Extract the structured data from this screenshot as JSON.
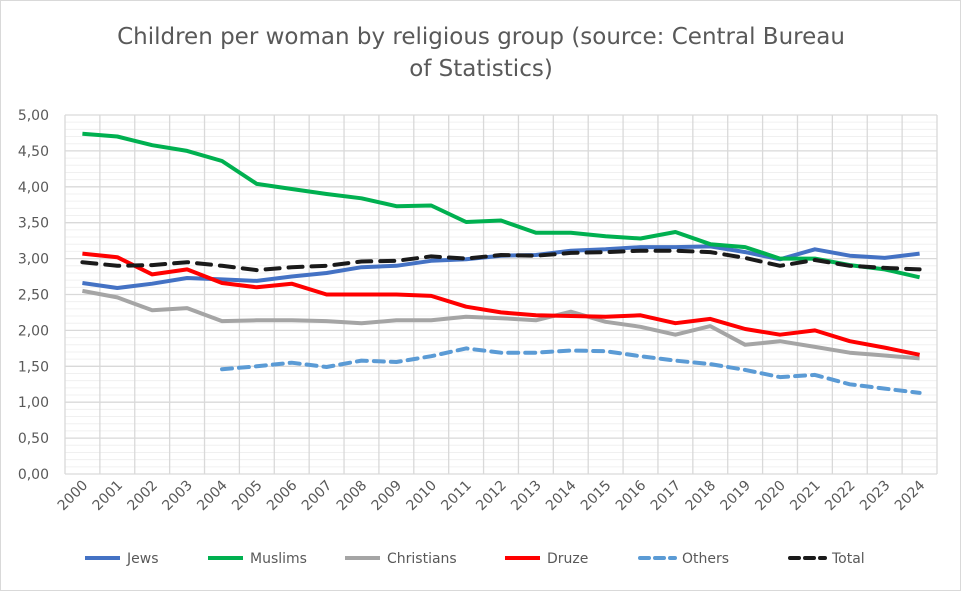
{
  "chart_data": {
    "type": "line",
    "title": "Children per woman by religious group (source: Central Bureau of Statistics)",
    "title_lines": [
      "Children per woman by religious group (source: Central Bureau",
      "of Statistics)"
    ],
    "xlabel": "",
    "ylabel": "",
    "ylim": [
      0,
      5
    ],
    "yticks": [
      "0,00",
      "0,50",
      "1,00",
      "1,50",
      "2,00",
      "2,50",
      "3,00",
      "3,50",
      "4,00",
      "4,50",
      "5,00"
    ],
    "grid": true,
    "legend_position": "bottom",
    "categories": [
      "2000",
      "2001",
      "2002",
      "2003",
      "2004",
      "2005",
      "2006",
      "2007",
      "2008",
      "2009",
      "2010",
      "2011",
      "2012",
      "2013",
      "2014",
      "2015",
      "2016",
      "2017",
      "2018",
      "2019",
      "2020",
      "2021",
      "2022",
      "2023",
      "2024"
    ],
    "series": [
      {
        "name": "Jews",
        "color": "#4472c4",
        "dash": false,
        "values": [
          2.66,
          2.59,
          2.65,
          2.73,
          2.71,
          2.69,
          2.75,
          2.8,
          2.88,
          2.9,
          2.97,
          2.99,
          3.04,
          3.05,
          3.11,
          3.13,
          3.16,
          3.16,
          3.17,
          3.09,
          2.99,
          3.13,
          3.04,
          3.01,
          3.07
        ]
      },
      {
        "name": "Muslims",
        "color": "#00b050",
        "dash": false,
        "values": [
          4.74,
          4.7,
          4.58,
          4.5,
          4.36,
          4.04,
          3.97,
          3.9,
          3.84,
          3.73,
          3.74,
          3.51,
          3.53,
          3.36,
          3.36,
          3.31,
          3.28,
          3.37,
          3.2,
          3.16,
          3.0,
          3.0,
          2.91,
          2.85,
          2.74
        ]
      },
      {
        "name": "Christians",
        "color": "#a5a5a5",
        "dash": false,
        "values": [
          2.55,
          2.46,
          2.28,
          2.31,
          2.13,
          2.14,
          2.14,
          2.13,
          2.1,
          2.14,
          2.14,
          2.19,
          2.17,
          2.14,
          2.26,
          2.12,
          2.05,
          1.94,
          2.06,
          1.8,
          1.85,
          1.77,
          1.69,
          1.65,
          1.61
        ]
      },
      {
        "name": "Druze",
        "color": "#ff0000",
        "dash": false,
        "values": [
          3.07,
          3.02,
          2.78,
          2.85,
          2.66,
          2.6,
          2.65,
          2.5,
          2.5,
          2.5,
          2.48,
          2.33,
          2.25,
          2.21,
          2.2,
          2.19,
          2.21,
          2.1,
          2.16,
          2.02,
          1.94,
          2.0,
          1.85,
          1.76,
          1.66
        ]
      },
      {
        "name": "Others",
        "color": "#5b9bd5",
        "dash": true,
        "values": [
          null,
          null,
          null,
          null,
          1.46,
          1.5,
          1.55,
          1.49,
          1.58,
          1.56,
          1.64,
          1.75,
          1.69,
          1.69,
          1.72,
          1.71,
          1.64,
          1.58,
          1.53,
          1.45,
          1.35,
          1.38,
          1.25,
          1.19,
          1.13
        ]
      },
      {
        "name": "Total",
        "color": "#1a1a1a",
        "dash": true,
        "values": [
          2.95,
          2.9,
          2.91,
          2.95,
          2.9,
          2.84,
          2.88,
          2.9,
          2.96,
          2.97,
          3.03,
          3.0,
          3.05,
          3.04,
          3.08,
          3.09,
          3.11,
          3.11,
          3.09,
          3.01,
          2.9,
          2.98,
          2.9,
          2.87,
          2.85
        ]
      }
    ]
  }
}
